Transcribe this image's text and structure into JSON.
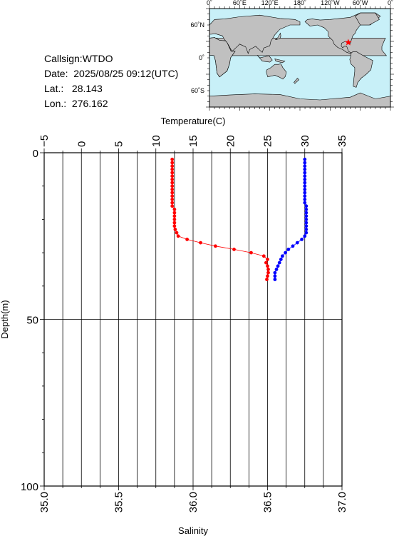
{
  "station": {
    "callsign_label": "Callsign:",
    "callsign": "WTDO",
    "date_label": "Date:",
    "date": "2025/08/25 09:12(UTC)",
    "lat_label": "Lat.:",
    "lat": "28.143",
    "lon_label": "Lon.:",
    "lon": "276.162"
  },
  "map": {
    "top_labels": [
      "0˚",
      "60˚E",
      "120˚E",
      "180˚",
      "120˚W",
      "60˚W",
      "0˚"
    ],
    "left_labels": [
      "60˚N",
      "0˚",
      "60˚S"
    ],
    "ocean_color": "#c8f0f8",
    "land_color": "#c0c0c0",
    "marker_color": "#ff0000",
    "marker_lat": 28.143,
    "marker_lon": 276.162
  },
  "chart_data": {
    "type": "scatter",
    "title": "",
    "ylabel": "Depth(m)",
    "ylim": [
      100,
      0
    ],
    "yticks": [
      "0",
      "50",
      "100"
    ],
    "yticks_values": [
      0,
      50,
      100
    ],
    "grid": true,
    "x_top": {
      "label": "Temperature(C)",
      "lim": [
        -5,
        35
      ],
      "ticks": [
        "−5",
        "0",
        "5",
        "10",
        "15",
        "20",
        "25",
        "30",
        "35"
      ],
      "ticks_values": [
        -5,
        0,
        5,
        10,
        15,
        20,
        25,
        30,
        35
      ]
    },
    "x_bottom": {
      "label": "Salinity",
      "lim": [
        35.0,
        37.0
      ],
      "ticks": [
        "35.0",
        "35.5",
        "36.0",
        "36.5",
        "37.0"
      ],
      "ticks_values": [
        35.0,
        35.5,
        36.0,
        36.5,
        37.0
      ]
    },
    "series": [
      {
        "axis": "top",
        "color": "#ff0000",
        "points": [
          [
            12.2,
            2
          ],
          [
            12.2,
            3
          ],
          [
            12.2,
            4
          ],
          [
            12.2,
            5
          ],
          [
            12.2,
            6
          ],
          [
            12.2,
            7
          ],
          [
            12.2,
            8
          ],
          [
            12.2,
            9
          ],
          [
            12.2,
            10
          ],
          [
            12.2,
            11
          ],
          [
            12.2,
            12
          ],
          [
            12.2,
            13
          ],
          [
            12.2,
            14
          ],
          [
            12.2,
            15
          ],
          [
            12.2,
            16
          ],
          [
            12.5,
            17
          ],
          [
            12.5,
            18
          ],
          [
            12.5,
            19
          ],
          [
            12.5,
            20
          ],
          [
            12.5,
            21
          ],
          [
            12.5,
            22
          ],
          [
            12.6,
            23
          ],
          [
            12.8,
            24
          ],
          [
            13.0,
            25
          ],
          [
            14.2,
            26
          ],
          [
            16.0,
            27
          ],
          [
            18.0,
            28
          ],
          [
            20.5,
            29
          ],
          [
            22.8,
            30
          ],
          [
            24.5,
            31
          ],
          [
            25.0,
            32
          ],
          [
            24.8,
            33
          ],
          [
            25.0,
            34
          ],
          [
            25.1,
            35
          ],
          [
            25.1,
            36
          ],
          [
            25.0,
            37
          ],
          [
            24.9,
            38
          ]
        ]
      },
      {
        "axis": "bottom",
        "color": "#0000ff",
        "points": [
          [
            36.75,
            2
          ],
          [
            36.75,
            3
          ],
          [
            36.75,
            4
          ],
          [
            36.75,
            5
          ],
          [
            36.75,
            6
          ],
          [
            36.75,
            7
          ],
          [
            36.75,
            8
          ],
          [
            36.75,
            9
          ],
          [
            36.75,
            10
          ],
          [
            36.75,
            11
          ],
          [
            36.75,
            12
          ],
          [
            36.75,
            13
          ],
          [
            36.75,
            14
          ],
          [
            36.75,
            15
          ],
          [
            36.76,
            16
          ],
          [
            36.76,
            17
          ],
          [
            36.76,
            18
          ],
          [
            36.76,
            19
          ],
          [
            36.76,
            20
          ],
          [
            36.76,
            21
          ],
          [
            36.76,
            22
          ],
          [
            36.76,
            23
          ],
          [
            36.76,
            24
          ],
          [
            36.75,
            25
          ],
          [
            36.73,
            26
          ],
          [
            36.7,
            27
          ],
          [
            36.67,
            28
          ],
          [
            36.64,
            29
          ],
          [
            36.62,
            30
          ],
          [
            36.6,
            31
          ],
          [
            36.59,
            32
          ],
          [
            36.58,
            33
          ],
          [
            36.57,
            34
          ],
          [
            36.56,
            35
          ],
          [
            36.55,
            36
          ],
          [
            36.55,
            37
          ],
          [
            36.55,
            38
          ]
        ]
      }
    ]
  }
}
